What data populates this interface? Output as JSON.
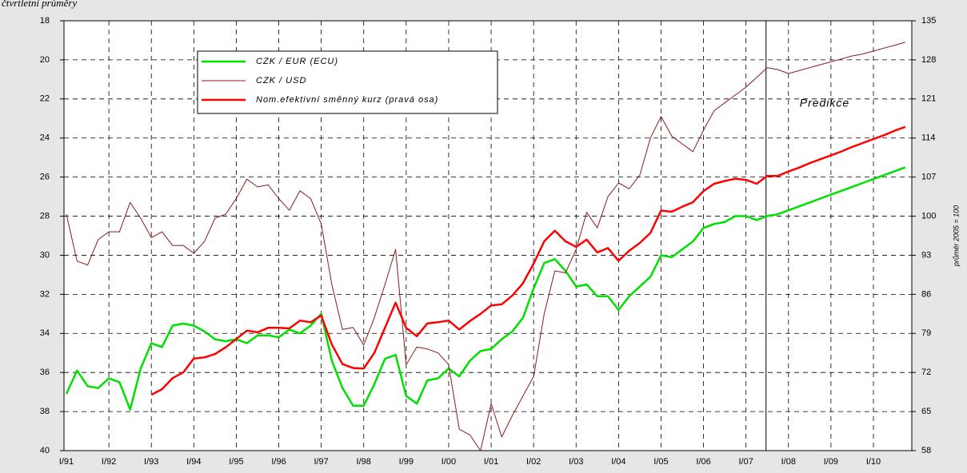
{
  "chart_data": {
    "type": "line",
    "title": "čtvrtletní průměry",
    "y2label": "průměr 2005 = 100",
    "categories": [
      "I/91",
      null,
      null,
      null,
      "I/92",
      null,
      null,
      null,
      "I/93",
      null,
      null,
      null,
      "I/94",
      null,
      null,
      null,
      "I/95",
      null,
      null,
      null,
      "I/96",
      null,
      null,
      null,
      "I/97",
      null,
      null,
      null,
      "I/98",
      null,
      null,
      null,
      "I/99",
      null,
      null,
      null,
      "I/00",
      null,
      null,
      null,
      "I/01",
      null,
      null,
      null,
      "I/02",
      null,
      null,
      null,
      "I/03",
      null,
      null,
      null,
      "I/04",
      null,
      null,
      null,
      "I/05",
      null,
      null,
      null,
      "I/06",
      null,
      null,
      null,
      "I/07",
      null,
      null,
      null,
      "I/08",
      null,
      null,
      null,
      "I/09",
      null,
      null,
      null,
      "I/10",
      null,
      null,
      null
    ],
    "series": [
      {
        "name": "CZK / EUR (ECU)",
        "color": "#00e000",
        "width": 2.5,
        "axis": "y",
        "values": [
          37.1,
          35.9,
          36.7,
          36.8,
          36.3,
          36.5,
          37.9,
          35.8,
          34.5,
          34.7,
          33.6,
          33.5,
          33.6,
          33.9,
          34.3,
          34.4,
          34.3,
          34.5,
          34.1,
          34.1,
          34.2,
          33.8,
          34.0,
          33.6,
          33.0,
          35.4,
          36.8,
          37.7,
          37.7,
          36.6,
          35.3,
          35.1,
          37.2,
          37.6,
          36.4,
          36.3,
          35.8,
          36.2,
          35.4,
          34.9,
          34.8,
          34.3,
          33.9,
          33.2,
          31.7,
          30.4,
          30.2,
          30.8,
          31.6,
          31.5,
          32.1,
          32.1,
          32.8,
          32.1,
          31.6,
          31.1,
          30.0,
          30.1,
          29.7,
          29.3,
          28.6,
          28.4,
          28.3,
          28.0,
          28.0,
          28.2,
          28.0,
          27.9,
          27.7,
          27.5,
          27.3,
          27.1,
          26.9,
          26.7,
          26.5,
          26.3,
          26.1,
          25.9,
          25.7,
          25.5
        ]
      },
      {
        "name": "CZK / USD",
        "color": "#8b1a1a",
        "width": 1,
        "axis": "y",
        "values": [
          27.9,
          30.3,
          30.5,
          29.2,
          28.8,
          28.8,
          27.3,
          28.1,
          29.1,
          28.8,
          29.5,
          29.5,
          29.9,
          29.3,
          28.1,
          27.9,
          27.1,
          26.1,
          26.5,
          26.4,
          27.1,
          27.7,
          26.7,
          27.1,
          28.4,
          31.5,
          33.8,
          33.7,
          34.6,
          33.2,
          31.5,
          29.7,
          35.6,
          34.7,
          34.8,
          35.0,
          35.6,
          38.9,
          39.2,
          40.0,
          37.6,
          39.3,
          38.2,
          37.2,
          36.2,
          33.0,
          30.8,
          30.9,
          29.7,
          27.8,
          28.6,
          27.0,
          26.3,
          26.6,
          25.9,
          24.0,
          22.9,
          23.9,
          24.3,
          24.7,
          23.6,
          22.6,
          22.2,
          21.8,
          21.4,
          20.9,
          20.4,
          20.5,
          20.7,
          20.55,
          20.4,
          20.25,
          20.1,
          19.95,
          19.8,
          19.7,
          19.55,
          19.4,
          19.25,
          19.1
        ]
      },
      {
        "name": "Nom.efektivní směnný kurz (pravá osa)",
        "color": "#ff0000",
        "width": 2.5,
        "axis": "y2",
        "values": [
          null,
          null,
          null,
          null,
          null,
          null,
          null,
          null,
          68,
          69,
          71,
          72,
          74.5,
          74.7,
          75.3,
          76.5,
          78,
          79.5,
          79.2,
          80,
          80,
          79.9,
          81.3,
          81,
          82.2,
          77,
          73.5,
          72.8,
          72.7,
          75.5,
          80,
          84.5,
          80,
          78.5,
          80.8,
          81,
          81.3,
          79.7,
          81.2,
          82.5,
          84,
          84.2,
          85.8,
          88,
          91.5,
          95.5,
          97.4,
          95.5,
          94.5,
          95.8,
          93.5,
          94.3,
          92,
          93.8,
          95.2,
          97,
          101,
          100.8,
          101.7,
          102.5,
          104.5,
          105.8,
          106.3,
          106.7,
          106.5,
          105.8,
          107.2,
          107.2,
          108,
          108.7,
          109.5,
          110.2,
          110.9,
          111.6,
          112.4,
          113.1,
          113.8,
          114.5,
          115.3,
          116
        ]
      }
    ],
    "ylim": [
      40,
      18
    ],
    "yticks": [
      18,
      20,
      22,
      24,
      26,
      28,
      30,
      32,
      34,
      36,
      38,
      40
    ],
    "y2lim": [
      58,
      135
    ],
    "y2ticks": [
      58,
      65,
      72,
      79,
      86,
      93,
      100,
      107,
      114,
      121,
      128,
      135
    ],
    "grid": true,
    "grid_style": "dashed",
    "annotations": [
      {
        "text": "Predikce",
        "x": 66
      }
    ]
  }
}
